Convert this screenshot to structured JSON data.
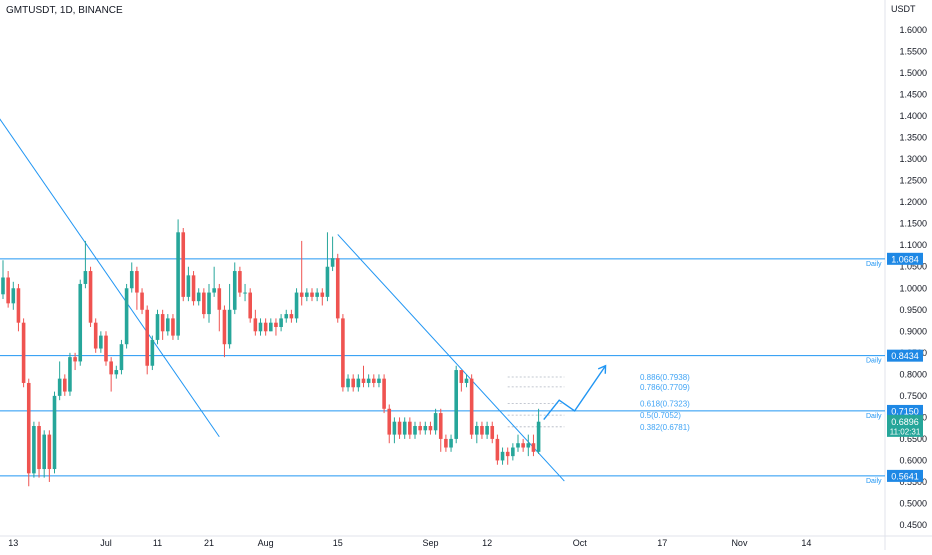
{
  "header": {
    "symbol_title": "GMTUSDT, 1D, BINANCE"
  },
  "axis": {
    "currency": "USDT"
  },
  "colors": {
    "up": "#26a69a",
    "down": "#ef5350",
    "line": "#2196f3",
    "label_bg": "#1e88e5",
    "current_bg": "#26a69a",
    "fib": "#42a5f5",
    "axis_text": "#131722"
  },
  "chart_data": {
    "type": "candlestick",
    "pair": "GMTUSDT",
    "interval": "1D",
    "exchange": "BINANCE",
    "ylim": [
      0.43,
      1.66
    ],
    "y_ticks": [
      "1.6000",
      "1.5500",
      "1.5000",
      "1.4500",
      "1.4000",
      "1.3500",
      "1.3000",
      "1.2500",
      "1.2000",
      "1.1500",
      "1.1000",
      "1.0500",
      "1.0000",
      "0.9500",
      "0.9000",
      "0.8500",
      "0.8000",
      "0.7500",
      "0.7000",
      "0.6500",
      "0.6000",
      "0.5500",
      "0.5000",
      "0.4500"
    ],
    "x_ticks": [
      {
        "label": "13",
        "day": 2
      },
      {
        "label": "Jul",
        "day": 20
      },
      {
        "label": "11",
        "day": 30
      },
      {
        "label": "21",
        "day": 40
      },
      {
        "label": "Aug",
        "day": 51
      },
      {
        "label": "15",
        "day": 65
      },
      {
        "label": "Sep",
        "day": 83
      },
      {
        "label": "12",
        "day": 94
      },
      {
        "label": "Oct",
        "day": 112
      },
      {
        "label": "17",
        "day": 128
      },
      {
        "label": "Nov",
        "day": 143
      },
      {
        "label": "14",
        "day": 156
      }
    ],
    "candles": [
      [
        0.986,
        1.025,
        1.065,
        0.975
      ],
      [
        1.025,
        0.965,
        1.04,
        0.955
      ],
      [
        0.965,
        1.0,
        1.015,
        0.95
      ],
      [
        1.0,
        0.92,
        1.01,
        0.9
      ],
      [
        0.92,
        0.78,
        0.93,
        0.77
      ],
      [
        0.78,
        0.57,
        0.79,
        0.54
      ],
      [
        0.57,
        0.68,
        0.69,
        0.56
      ],
      [
        0.68,
        0.58,
        0.69,
        0.56
      ],
      [
        0.58,
        0.66,
        0.67,
        0.56
      ],
      [
        0.66,
        0.58,
        0.67,
        0.55
      ],
      [
        0.58,
        0.75,
        0.76,
        0.57
      ],
      [
        0.75,
        0.79,
        0.83,
        0.74
      ],
      [
        0.79,
        0.76,
        0.8,
        0.75
      ],
      [
        0.76,
        0.84,
        0.85,
        0.75
      ],
      [
        0.84,
        0.83,
        0.85,
        0.81
      ],
      [
        0.83,
        1.01,
        1.02,
        0.82
      ],
      [
        1.01,
        1.04,
        1.11,
        1.0
      ],
      [
        1.04,
        0.92,
        1.05,
        0.91
      ],
      [
        0.92,
        0.86,
        0.93,
        0.85
      ],
      [
        0.86,
        0.89,
        0.9,
        0.85
      ],
      [
        0.89,
        0.83,
        0.9,
        0.82
      ],
      [
        0.83,
        0.8,
        0.84,
        0.76
      ],
      [
        0.8,
        0.81,
        0.82,
        0.79
      ],
      [
        0.81,
        0.87,
        0.88,
        0.8
      ],
      [
        0.87,
        1.0,
        1.01,
        0.86
      ],
      [
        1.0,
        1.04,
        1.06,
        0.99
      ],
      [
        1.04,
        0.99,
        1.05,
        0.95
      ],
      [
        0.99,
        0.95,
        1.0,
        0.94
      ],
      [
        0.95,
        0.82,
        0.96,
        0.8
      ],
      [
        0.82,
        0.88,
        0.89,
        0.81
      ],
      [
        0.88,
        0.94,
        0.95,
        0.87
      ],
      [
        0.94,
        0.9,
        0.95,
        0.88
      ],
      [
        0.9,
        0.93,
        0.94,
        0.89
      ],
      [
        0.93,
        0.89,
        0.94,
        0.88
      ],
      [
        0.89,
        1.13,
        1.16,
        0.88
      ],
      [
        1.13,
        0.98,
        1.14,
        0.97
      ],
      [
        0.98,
        1.03,
        1.05,
        0.97
      ],
      [
        1.03,
        0.97,
        1.04,
        0.96
      ],
      [
        0.97,
        0.99,
        1.0,
        0.96
      ],
      [
        0.99,
        0.94,
        1.0,
        0.93
      ],
      [
        0.94,
        0.99,
        1.01,
        0.92
      ],
      [
        0.99,
        1.0,
        1.05,
        0.98
      ],
      [
        1.0,
        0.95,
        1.01,
        0.9
      ],
      [
        0.95,
        0.87,
        0.96,
        0.84
      ],
      [
        0.87,
        0.95,
        1.01,
        0.86
      ],
      [
        0.95,
        1.04,
        1.06,
        0.94
      ],
      [
        1.04,
        0.99,
        1.05,
        0.98
      ],
      [
        0.99,
        0.99,
        1.01,
        0.97
      ],
      [
        0.99,
        0.93,
        1.0,
        0.92
      ],
      [
        0.93,
        0.9,
        0.95,
        0.89
      ],
      [
        0.9,
        0.92,
        0.93,
        0.89
      ],
      [
        0.92,
        0.9,
        0.93,
        0.89
      ],
      [
        0.9,
        0.92,
        0.93,
        0.9
      ],
      [
        0.92,
        0.91,
        0.93,
        0.89
      ],
      [
        0.91,
        0.93,
        0.94,
        0.9
      ],
      [
        0.93,
        0.94,
        0.95,
        0.92
      ],
      [
        0.94,
        0.93,
        0.95,
        0.92
      ],
      [
        0.93,
        0.99,
        1.0,
        0.92
      ],
      [
        0.99,
        0.98,
        1.11,
        0.96
      ],
      [
        0.98,
        0.99,
        1.0,
        0.97
      ],
      [
        0.99,
        0.98,
        1.0,
        0.97
      ],
      [
        0.98,
        0.99,
        1.0,
        0.97
      ],
      [
        0.99,
        0.98,
        1.0,
        0.96
      ],
      [
        0.98,
        1.05,
        1.13,
        0.97
      ],
      [
        1.05,
        1.07,
        1.12,
        1.04
      ],
      [
        1.07,
        0.93,
        1.08,
        0.92
      ],
      [
        0.93,
        0.77,
        0.94,
        0.76
      ],
      [
        0.77,
        0.79,
        0.8,
        0.76
      ],
      [
        0.79,
        0.77,
        0.8,
        0.76
      ],
      [
        0.77,
        0.79,
        0.8,
        0.76
      ],
      [
        0.79,
        0.78,
        0.82,
        0.77
      ],
      [
        0.78,
        0.79,
        0.8,
        0.77
      ],
      [
        0.79,
        0.78,
        0.8,
        0.77
      ],
      [
        0.78,
        0.79,
        0.8,
        0.77
      ],
      [
        0.79,
        0.72,
        0.8,
        0.71
      ],
      [
        0.72,
        0.66,
        0.73,
        0.64
      ],
      [
        0.66,
        0.69,
        0.7,
        0.64
      ],
      [
        0.69,
        0.66,
        0.7,
        0.65
      ],
      [
        0.66,
        0.69,
        0.7,
        0.65
      ],
      [
        0.69,
        0.66,
        0.7,
        0.65
      ],
      [
        0.66,
        0.68,
        0.69,
        0.65
      ],
      [
        0.68,
        0.67,
        0.69,
        0.66
      ],
      [
        0.67,
        0.68,
        0.69,
        0.66
      ],
      [
        0.68,
        0.67,
        0.69,
        0.66
      ],
      [
        0.67,
        0.71,
        0.72,
        0.66
      ],
      [
        0.71,
        0.65,
        0.72,
        0.62
      ],
      [
        0.65,
        0.63,
        0.66,
        0.62
      ],
      [
        0.63,
        0.65,
        0.66,
        0.62
      ],
      [
        0.65,
        0.81,
        0.82,
        0.64
      ],
      [
        0.81,
        0.78,
        0.8,
        0.76
      ],
      [
        0.78,
        0.79,
        0.8,
        0.77
      ],
      [
        0.79,
        0.66,
        0.8,
        0.65
      ],
      [
        0.66,
        0.68,
        0.69,
        0.64
      ],
      [
        0.68,
        0.66,
        0.69,
        0.65
      ],
      [
        0.66,
        0.68,
        0.69,
        0.65
      ],
      [
        0.68,
        0.65,
        0.69,
        0.64
      ],
      [
        0.65,
        0.6,
        0.66,
        0.59
      ],
      [
        0.6,
        0.62,
        0.63,
        0.59
      ],
      [
        0.62,
        0.61,
        0.63,
        0.59
      ],
      [
        0.61,
        0.63,
        0.64,
        0.6
      ],
      [
        0.63,
        0.64,
        0.66,
        0.62
      ],
      [
        0.64,
        0.63,
        0.65,
        0.62
      ],
      [
        0.63,
        0.64,
        0.66,
        0.61
      ],
      [
        0.64,
        0.62,
        0.66,
        0.61
      ],
      [
        0.62,
        0.69,
        0.72,
        0.615
      ]
    ],
    "horizontal_levels": [
      {
        "value": 1.0684,
        "label": "1.0684",
        "tag": "Daily"
      },
      {
        "value": 0.8434,
        "label": "0.8434",
        "tag": "Daily"
      },
      {
        "value": 0.715,
        "label": "0.7150",
        "tag": "Daily"
      },
      {
        "value": 0.5641,
        "label": "0.5641",
        "tag": "Daily"
      }
    ],
    "trendlines": [
      {
        "from": [
          -1,
          1.4
        ],
        "to": [
          42,
          0.655
        ]
      },
      {
        "from": [
          65,
          1.125
        ],
        "to": [
          109,
          0.552
        ]
      }
    ],
    "fib_levels": [
      {
        "ratio": "0.886",
        "value": 0.7938,
        "label": "0.886(0.7938)"
      },
      {
        "ratio": "0.786",
        "value": 0.7709,
        "label": "0.786(0.7709)"
      },
      {
        "ratio": "0.618",
        "value": 0.7323,
        "label": "0.618(0.7323)"
      },
      {
        "ratio": "0.5",
        "value": 0.7052,
        "label": "0.5(0.7052)"
      },
      {
        "ratio": "0.382",
        "value": 0.6781,
        "label": "0.382(0.6781)"
      }
    ],
    "projection_path": [
      [
        105,
        0.695
      ],
      [
        108,
        0.74
      ],
      [
        111,
        0.715
      ],
      [
        117,
        0.82
      ]
    ],
    "current_price": {
      "value": 0.6896,
      "label": "0.6896",
      "countdown": "11:02:31"
    }
  }
}
